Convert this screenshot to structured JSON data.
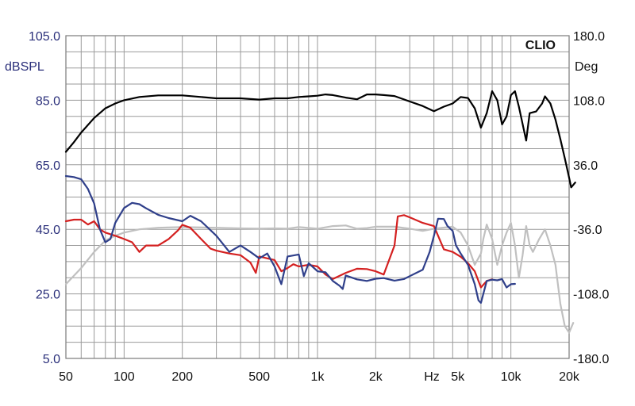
{
  "chart_data": {
    "type": "line",
    "brand": "CLIO",
    "left_axis": {
      "label": "dBSPL",
      "scale": "linear",
      "ylim": [
        5,
        105
      ],
      "ticks": [
        "105.0",
        "85.0",
        "65.0",
        "45.0",
        "25.0",
        "5.0"
      ],
      "tick_values": [
        105,
        85,
        65,
        45,
        25,
        5
      ],
      "color": "#2a2f7a"
    },
    "right_axis": {
      "label": "Deg",
      "scale": "linear",
      "ylim": [
        -180,
        180
      ],
      "ticks": [
        "180.0",
        "108.0",
        "36.0",
        "-36.0",
        "-108.0",
        "-180.0"
      ],
      "tick_values": [
        180,
        108,
        36,
        -36,
        -108,
        -180
      ]
    },
    "x_axis": {
      "scale": "log",
      "xlim": [
        50,
        20000
      ],
      "unit_label": "Hz",
      "ticks": [
        {
          "label": "50",
          "value": 50
        },
        {
          "label": "100",
          "value": 100
        },
        {
          "label": "200",
          "value": 200
        },
        {
          "label": "500",
          "value": 500
        },
        {
          "label": "1k",
          "value": 1000
        },
        {
          "label": "2k",
          "value": 2000
        },
        {
          "label": "5k",
          "value": 5000
        },
        {
          "label": "10k",
          "value": 10000
        },
        {
          "label": "20k",
          "value": 20000
        }
      ]
    },
    "grid": true,
    "series": [
      {
        "color": "#000000",
        "axis": "left",
        "points": [
          [
            50,
            69
          ],
          [
            55,
            72
          ],
          [
            60,
            75
          ],
          [
            70,
            79.5
          ],
          [
            80,
            82.5
          ],
          [
            90,
            84
          ],
          [
            100,
            85
          ],
          [
            120,
            86
          ],
          [
            150,
            86.5
          ],
          [
            200,
            86.5
          ],
          [
            250,
            86
          ],
          [
            300,
            85.6
          ],
          [
            400,
            85.6
          ],
          [
            500,
            85.2
          ],
          [
            600,
            85.6
          ],
          [
            700,
            85.6
          ],
          [
            800,
            86
          ],
          [
            900,
            86.2
          ],
          [
            1000,
            86.4
          ],
          [
            1100,
            86.8
          ],
          [
            1200,
            86.6
          ],
          [
            1400,
            85.8
          ],
          [
            1600,
            85.3
          ],
          [
            1800,
            86.8
          ],
          [
            2000,
            86.8
          ],
          [
            2200,
            86.6
          ],
          [
            2500,
            86.3
          ],
          [
            3000,
            84.6
          ],
          [
            3500,
            83.2
          ],
          [
            4000,
            81.6
          ],
          [
            4500,
            83
          ],
          [
            5000,
            84
          ],
          [
            5500,
            86
          ],
          [
            6000,
            85.7
          ],
          [
            6500,
            82.5
          ],
          [
            7000,
            76.5
          ],
          [
            7500,
            81
          ],
          [
            8000,
            87.8
          ],
          [
            8500,
            85
          ],
          [
            9000,
            77.5
          ],
          [
            9500,
            80
          ],
          [
            10000,
            86.6
          ],
          [
            10500,
            87.8
          ],
          [
            11000,
            83
          ],
          [
            12000,
            72.5
          ],
          [
            12500,
            81
          ],
          [
            13500,
            81.5
          ],
          [
            14500,
            84
          ],
          [
            15000,
            86.2
          ],
          [
            16000,
            84
          ],
          [
            17000,
            79
          ],
          [
            18000,
            73
          ],
          [
            19000,
            67
          ],
          [
            20000,
            61
          ],
          [
            20500,
            58
          ],
          [
            21500,
            59.5
          ]
        ]
      },
      {
        "color": "#c0c0c0",
        "axis": "left",
        "points": [
          [
            50,
            28
          ],
          [
            60,
            33
          ],
          [
            70,
            38
          ],
          [
            80,
            41.5
          ],
          [
            90,
            43
          ],
          [
            100,
            44
          ],
          [
            120,
            45
          ],
          [
            150,
            45.5
          ],
          [
            200,
            45.7
          ],
          [
            300,
            45.5
          ],
          [
            400,
            45.3
          ],
          [
            500,
            45.2
          ],
          [
            600,
            45.3
          ],
          [
            700,
            45.2
          ],
          [
            800,
            45.7
          ],
          [
            1000,
            45.2
          ],
          [
            1200,
            46
          ],
          [
            1400,
            46.2
          ],
          [
            1600,
            45.2
          ],
          [
            1800,
            45.4
          ],
          [
            2000,
            45.8
          ],
          [
            2500,
            45.8
          ],
          [
            3000,
            45.2
          ],
          [
            3500,
            44.5
          ],
          [
            4000,
            45.2
          ],
          [
            5000,
            45.8
          ],
          [
            5500,
            44
          ],
          [
            6000,
            40
          ],
          [
            6500,
            34
          ],
          [
            7000,
            37.5
          ],
          [
            7200,
            42
          ],
          [
            7500,
            46.5
          ],
          [
            8000,
            42
          ],
          [
            8500,
            34
          ],
          [
            9000,
            40
          ],
          [
            9500,
            44
          ],
          [
            10000,
            47
          ],
          [
            10500,
            40
          ],
          [
            11000,
            30
          ],
          [
            11500,
            37
          ],
          [
            12000,
            46
          ],
          [
            12500,
            40
          ],
          [
            13000,
            38
          ],
          [
            14000,
            42
          ],
          [
            15000,
            45
          ],
          [
            16000,
            40
          ],
          [
            17000,
            34
          ],
          [
            18000,
            22
          ],
          [
            19000,
            15
          ],
          [
            20000,
            13
          ],
          [
            21000,
            16
          ]
        ]
      },
      {
        "color": "#d42020",
        "axis": "left",
        "points": [
          [
            50,
            47.5
          ],
          [
            55,
            48
          ],
          [
            60,
            48
          ],
          [
            65,
            46.5
          ],
          [
            70,
            47.5
          ],
          [
            75,
            45
          ],
          [
            80,
            44
          ],
          [
            90,
            43
          ],
          [
            100,
            42
          ],
          [
            110,
            41
          ],
          [
            120,
            38
          ],
          [
            130,
            40
          ],
          [
            150,
            40
          ],
          [
            170,
            42
          ],
          [
            190,
            44.7
          ],
          [
            200,
            46.4
          ],
          [
            220,
            45.5
          ],
          [
            250,
            42
          ],
          [
            280,
            39
          ],
          [
            300,
            38.4
          ],
          [
            350,
            37.5
          ],
          [
            400,
            37
          ],
          [
            450,
            34.7
          ],
          [
            480,
            31.5
          ],
          [
            500,
            36.6
          ],
          [
            550,
            36
          ],
          [
            600,
            35.5
          ],
          [
            650,
            32
          ],
          [
            700,
            33
          ],
          [
            750,
            34.2
          ],
          [
            800,
            33.5
          ],
          [
            900,
            34
          ],
          [
            1000,
            33.5
          ],
          [
            1100,
            31
          ],
          [
            1200,
            29.6
          ],
          [
            1400,
            31.5
          ],
          [
            1600,
            32.8
          ],
          [
            1800,
            32.7
          ],
          [
            2000,
            32
          ],
          [
            2200,
            31
          ],
          [
            2500,
            40
          ],
          [
            2600,
            49
          ],
          [
            2800,
            49.4
          ],
          [
            3000,
            48.7
          ],
          [
            3500,
            47
          ],
          [
            4000,
            46
          ],
          [
            4500,
            38.8
          ],
          [
            5000,
            38
          ],
          [
            5500,
            36.5
          ],
          [
            6000,
            34.5
          ],
          [
            6500,
            32
          ],
          [
            7000,
            27
          ],
          [
            7500,
            29
          ],
          [
            8000,
            29.5
          ]
        ]
      },
      {
        "color": "#2f3f8a",
        "axis": "left",
        "points": [
          [
            50,
            61.5
          ],
          [
            55,
            61.2
          ],
          [
            60,
            60.5
          ],
          [
            65,
            57.5
          ],
          [
            70,
            53
          ],
          [
            75,
            45
          ],
          [
            80,
            41
          ],
          [
            85,
            42
          ],
          [
            90,
            47
          ],
          [
            100,
            51.6
          ],
          [
            110,
            53.2
          ],
          [
            120,
            52.8
          ],
          [
            130,
            51.5
          ],
          [
            150,
            49.5
          ],
          [
            170,
            48.5
          ],
          [
            200,
            47.5
          ],
          [
            220,
            49.2
          ],
          [
            250,
            47.5
          ],
          [
            300,
            43
          ],
          [
            350,
            38
          ],
          [
            400,
            40
          ],
          [
            450,
            38
          ],
          [
            500,
            36
          ],
          [
            550,
            37.5
          ],
          [
            600,
            33.5
          ],
          [
            650,
            28
          ],
          [
            700,
            36.6
          ],
          [
            800,
            37.2
          ],
          [
            850,
            30.5
          ],
          [
            900,
            34.5
          ],
          [
            1000,
            32
          ],
          [
            1100,
            31.7
          ],
          [
            1200,
            29
          ],
          [
            1300,
            27.5
          ],
          [
            1350,
            26.5
          ],
          [
            1400,
            30.7
          ],
          [
            1600,
            29.5
          ],
          [
            1800,
            29
          ],
          [
            2000,
            29.7
          ],
          [
            2200,
            29.9
          ],
          [
            2500,
            29.1
          ],
          [
            2800,
            29.6
          ],
          [
            3000,
            30.5
          ],
          [
            3500,
            32.5
          ],
          [
            3800,
            38
          ],
          [
            4000,
            43
          ],
          [
            4200,
            48.3
          ],
          [
            4500,
            48.2
          ],
          [
            4700,
            46
          ],
          [
            5000,
            44.5
          ],
          [
            5200,
            40
          ],
          [
            5500,
            37.5
          ],
          [
            6000,
            34
          ],
          [
            6500,
            28
          ],
          [
            6800,
            23
          ],
          [
            7000,
            22.2
          ],
          [
            7500,
            29
          ],
          [
            8000,
            29.4
          ],
          [
            8500,
            29.2
          ],
          [
            9000,
            29.6
          ],
          [
            9500,
            27
          ],
          [
            10000,
            28
          ],
          [
            10500,
            28.1
          ]
        ]
      }
    ]
  }
}
